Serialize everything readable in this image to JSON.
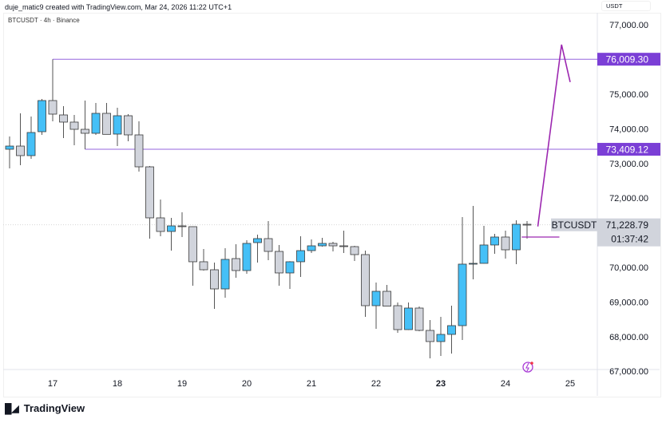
{
  "header": {
    "attribution": "duje_matic9 created with TradingView.com, Mar 24, 2026 11:22 UTC+1",
    "symbol_line": "BTCUSDT · 4h · Binance"
  },
  "footer": {
    "brand": "TradingView"
  },
  "colors": {
    "up": "#45c0f7",
    "down": "#d1d4dc",
    "level": "#7b3fd6",
    "projection": "#9c27b0"
  },
  "chart_data": {
    "type": "candlestick",
    "title": "BTCUSDT · 4h · Binance",
    "currency_label": "USDT",
    "ylim": [
      66900,
      77400
    ],
    "y_ticks": [
      {
        "value": 77000,
        "label": "77,000.00"
      },
      {
        "value": 75000,
        "label": "75,000.00"
      },
      {
        "value": 74000,
        "label": "74,000.00"
      },
      {
        "value": 73000,
        "label": "73,000.00"
      },
      {
        "value": 72000,
        "label": "72,000.00"
      },
      {
        "value": 70000,
        "label": "70,000.00"
      },
      {
        "value": 69000,
        "label": "69,000.00"
      },
      {
        "value": 68000,
        "label": "68,000.00"
      },
      {
        "value": 67000,
        "label": "67,000.00"
      }
    ],
    "x_ticks": [
      {
        "index": 4,
        "label": "17"
      },
      {
        "index": 10,
        "label": "18"
      },
      {
        "index": 16,
        "label": "19"
      },
      {
        "index": 22,
        "label": "20"
      },
      {
        "index": 28,
        "label": "21"
      },
      {
        "index": 34,
        "label": "22"
      },
      {
        "index": 40,
        "label": "23",
        "bold": true
      },
      {
        "index": 46,
        "label": "24"
      },
      {
        "index": 52,
        "label": "25"
      }
    ],
    "ohlc": [
      [
        73410,
        73779,
        72857,
        73502
      ],
      [
        73502,
        74447,
        72949,
        73226
      ],
      [
        73226,
        74355,
        73134,
        73894
      ],
      [
        73917,
        74862,
        73825,
        74816
      ],
      [
        74816,
        76009,
        74217,
        74424
      ],
      [
        74401,
        74654,
        73733,
        74194
      ],
      [
        74194,
        74401,
        73525,
        73986
      ],
      [
        73986,
        74816,
        73409,
        73871
      ],
      [
        73871,
        74747,
        73825,
        74447
      ],
      [
        74447,
        74747,
        73840,
        73840
      ],
      [
        73848,
        74608,
        73502,
        74378
      ],
      [
        74378,
        74424,
        73641,
        73825
      ],
      [
        73825,
        74217,
        72765,
        72903
      ],
      [
        72903,
        72926,
        70830,
        71429
      ],
      [
        71429,
        71959,
        70899,
        71037
      ],
      [
        71037,
        71429,
        70484,
        71198
      ],
      [
        71198,
        71590,
        70876,
        71175
      ],
      [
        71175,
        71180,
        69470,
        70162
      ],
      [
        70162,
        70530,
        69908,
        69931
      ],
      [
        69931,
        70139,
        68802,
        69378
      ],
      [
        69378,
        70553,
        69125,
        70231
      ],
      [
        70254,
        70669,
        69701,
        69908
      ],
      [
        69908,
        70784,
        69816,
        70692
      ],
      [
        70715,
        70945,
        70139,
        70830
      ],
      [
        70830,
        71337,
        70208,
        70461
      ],
      [
        70461,
        70646,
        69470,
        69839
      ],
      [
        69839,
        70180,
        69378,
        70162
      ],
      [
        70162,
        70899,
        69724,
        70484
      ],
      [
        70484,
        70807,
        70415,
        70622
      ],
      [
        70622,
        70853,
        70599,
        70692
      ],
      [
        70692,
        70738,
        70461,
        70622
      ],
      [
        70622,
        71060,
        70415,
        70599
      ],
      [
        70599,
        70622,
        70185,
        70369
      ],
      [
        70369,
        70484,
        68572,
        68894
      ],
      [
        68894,
        69562,
        68226,
        69309
      ],
      [
        69309,
        69493,
        68880,
        68880
      ],
      [
        68894,
        68987,
        68111,
        68203
      ],
      [
        68203,
        68987,
        68190,
        68825
      ],
      [
        68825,
        68871,
        68157,
        68180
      ],
      [
        68180,
        68480,
        67374,
        67858
      ],
      [
        67858,
        68572,
        67443,
        68065
      ],
      [
        68065,
        68894,
        67512,
        68318
      ],
      [
        68318,
        71452,
        67904,
        70093
      ],
      [
        70093,
        71774,
        69654,
        70116
      ],
      [
        70116,
        71198,
        70110,
        70646
      ],
      [
        70646,
        70968,
        70392,
        70876
      ],
      [
        70876,
        71060,
        70254,
        70507
      ],
      [
        70507,
        71360,
        70093,
        71244
      ],
      [
        71244,
        71337,
        70830,
        71228.79
      ]
    ],
    "levels": [
      {
        "price": 76009.3,
        "label": "76,009.30",
        "from_index": 4
      },
      {
        "price": 73409.12,
        "label": "73,409.12",
        "from_index": 7
      }
    ],
    "projection": [
      [
        49,
        71180
      ],
      [
        51.2,
        76430
      ],
      [
        52,
        75350
      ]
    ],
    "projection_base": {
      "price": 70876,
      "from_index": 47.5,
      "to_index": 51
    },
    "last_price": {
      "symbol": "BTCUSDT",
      "price": 71228.79,
      "label": "71,228.79",
      "countdown": "01:37:42"
    }
  }
}
